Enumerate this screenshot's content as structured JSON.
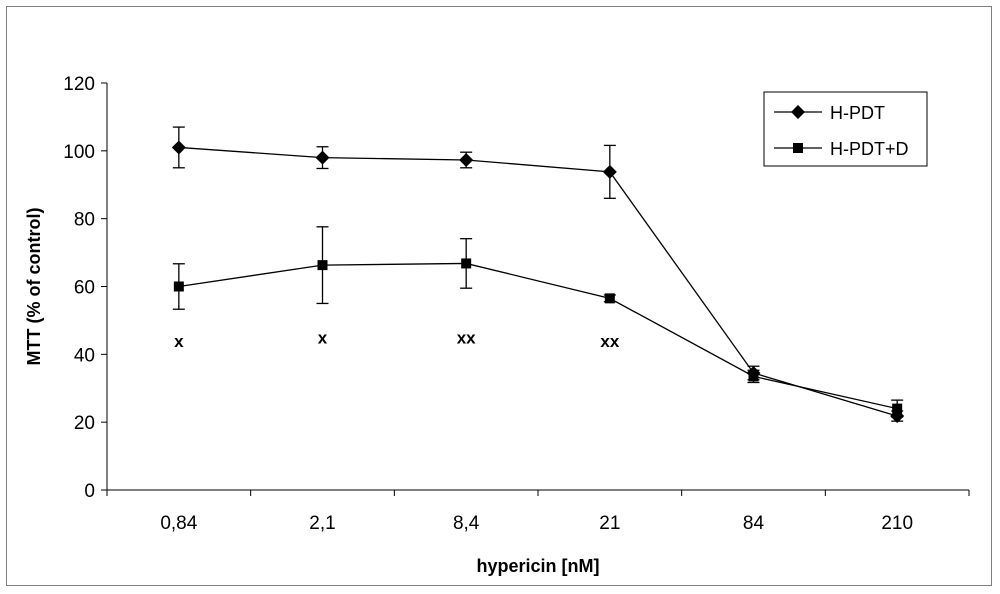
{
  "chart_data": {
    "type": "line",
    "title": "",
    "xlabel": "hypericin [nM]",
    "ylabel": "MTT (% of control)",
    "categories": [
      "0,84",
      "2,1",
      "8,4",
      "21",
      "84",
      "210"
    ],
    "ylim": [
      0,
      120
    ],
    "yticks": [
      0,
      20,
      40,
      60,
      80,
      100,
      120
    ],
    "grid": false,
    "legend_position": "top-right",
    "series": [
      {
        "name": "H-PDT",
        "marker": "diamond",
        "values": [
          101,
          98,
          97.3,
          93.8,
          34.5,
          21.8
        ],
        "errors": [
          6,
          3.2,
          2.3,
          7.8,
          2,
          1.5
        ]
      },
      {
        "name": "H-PDT+D",
        "marker": "square",
        "values": [
          60,
          66.3,
          66.8,
          56.5,
          33.5,
          24
        ],
        "errors": [
          6.7,
          11.3,
          7.3,
          1,
          1.8,
          2.5
        ]
      }
    ],
    "annotations": [
      {
        "category": "0,84",
        "text": "x",
        "value": 44
      },
      {
        "category": "2,1",
        "text": "x",
        "value": 45
      },
      {
        "category": "8,4",
        "text": "xx",
        "value": 45
      },
      {
        "category": "21",
        "text": "xx",
        "value": 44
      }
    ],
    "colors": {
      "line": "#000000",
      "frame": "#7f7f7f"
    }
  }
}
